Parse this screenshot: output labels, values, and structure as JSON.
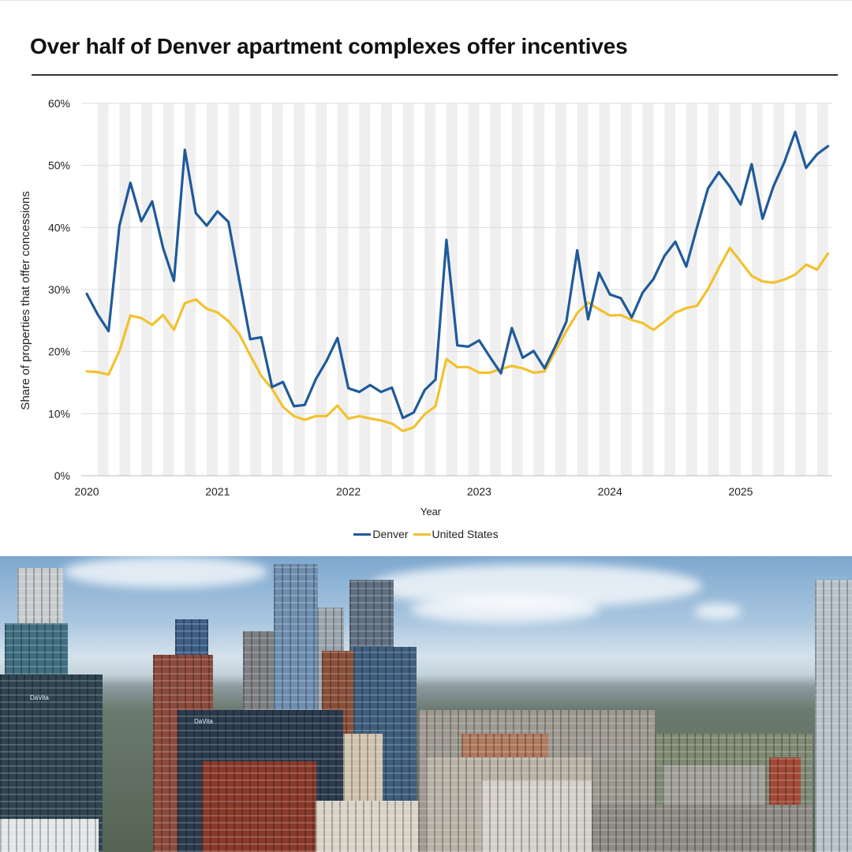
{
  "chart_data": {
    "type": "line",
    "title": "Over half of Denver apartment complexes offer incentives",
    "xlabel": "Year",
    "ylabel": "Share of properties that offer concessions",
    "ylim": [
      0,
      60
    ],
    "yticks": [
      "0%",
      "10%",
      "20%",
      "30%",
      "40%",
      "50%",
      "60%"
    ],
    "xticks": [
      "2020",
      "2021",
      "2022",
      "2023",
      "2024",
      "2025"
    ],
    "grid": "horizontal gridlines with alternating vertical month bands",
    "legend_placement": "bottom-center",
    "x_start": "2020-01",
    "x_interval": "month",
    "series": [
      {
        "name": "Denver",
        "color": "#1f5a9b",
        "values": [
          29.3,
          26.0,
          23.3,
          40.3,
          47.2,
          41.0,
          44.2,
          36.7,
          31.4,
          52.5,
          42.3,
          40.3,
          42.6,
          40.9,
          31.4,
          22.0,
          22.3,
          14.3,
          15.1,
          11.2,
          11.4,
          15.5,
          18.5,
          22.2,
          14.1,
          13.5,
          14.6,
          13.5,
          14.2,
          9.3,
          10.2,
          13.8,
          15.5,
          38.0,
          21.0,
          20.8,
          21.8,
          19.1,
          16.5,
          23.8,
          19.0,
          20.1,
          17.3,
          20.9,
          24.8,
          36.3,
          25.2,
          32.7,
          29.2,
          28.6,
          25.5,
          29.5,
          31.7,
          35.4,
          37.7,
          33.7,
          40.1,
          46.3,
          48.9,
          46.6,
          43.7,
          50.2,
          41.4,
          46.6,
          50.5,
          55.4,
          49.6,
          51.8,
          53.1
        ]
      },
      {
        "name": "United States",
        "color": "#f2c12e",
        "values": [
          16.8,
          16.7,
          16.3,
          20.1,
          25.8,
          25.4,
          24.3,
          25.9,
          23.5,
          27.8,
          28.4,
          26.9,
          26.3,
          24.9,
          22.8,
          19.4,
          16.1,
          14.0,
          11.1,
          9.6,
          9.0,
          9.6,
          9.6,
          11.3,
          9.2,
          9.6,
          9.2,
          8.9,
          8.4,
          7.2,
          7.8,
          9.9,
          11.2,
          18.8,
          17.5,
          17.5,
          16.6,
          16.6,
          17.2,
          17.7,
          17.3,
          16.6,
          16.8,
          20.1,
          23.3,
          26.2,
          27.9,
          26.8,
          25.8,
          25.9,
          25.1,
          24.6,
          23.5,
          24.8,
          26.3,
          27.0,
          27.4,
          30.1,
          33.5,
          36.7,
          34.5,
          32.2,
          31.3,
          31.1,
          31.6,
          32.4,
          34.0,
          33.2,
          35.8
        ]
      }
    ]
  },
  "photo": {
    "subject": "downtown Denver skyline",
    "sky_color": "#8fb3d6",
    "signage": [
      "DaVita",
      "DaVita"
    ]
  }
}
